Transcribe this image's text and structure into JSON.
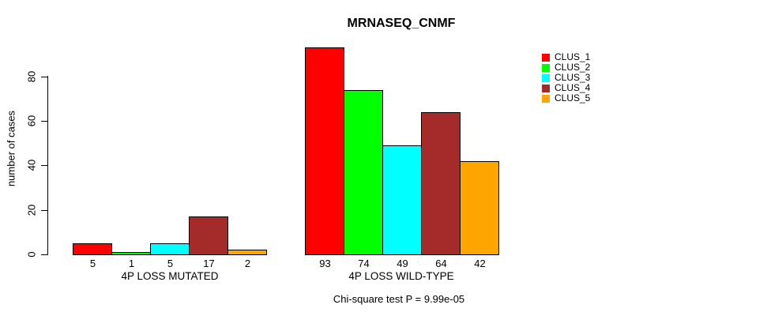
{
  "title": "MRNASEQ_CNMF",
  "caption": "Chi-square test P = 9.99e-05",
  "chart_data": {
    "type": "bar",
    "title": "MRNASEQ_CNMF",
    "xlabel": "",
    "ylabel": "number of cases",
    "yticks": [
      0,
      20,
      40,
      60,
      80
    ],
    "ylim": [
      0,
      93
    ],
    "grid": false,
    "legend_position": "right-outside",
    "categories": [
      "4P LOSS MUTATED",
      "4P LOSS WILD-TYPE"
    ],
    "groups": [
      {
        "label": "4P LOSS MUTATED",
        "values": [
          5,
          1,
          5,
          17,
          2
        ]
      },
      {
        "label": "4P LOSS WILD-TYPE",
        "values": [
          93,
          74,
          49,
          64,
          42
        ]
      }
    ],
    "series": [
      {
        "name": "CLUS_1",
        "color": "#FF0000"
      },
      {
        "name": "CLUS_2",
        "color": "#00FF00"
      },
      {
        "name": "CLUS_3",
        "color": "#00FFFF"
      },
      {
        "name": "CLUS_4",
        "color": "#A52A2A"
      },
      {
        "name": "CLUS_5",
        "color": "#FFA500"
      }
    ],
    "bar_value_labels": [
      [
        5,
        1,
        5,
        17,
        2
      ],
      [
        93,
        74,
        49,
        64,
        42
      ]
    ],
    "annotation": "Chi-square test P = 9.99e-05"
  }
}
